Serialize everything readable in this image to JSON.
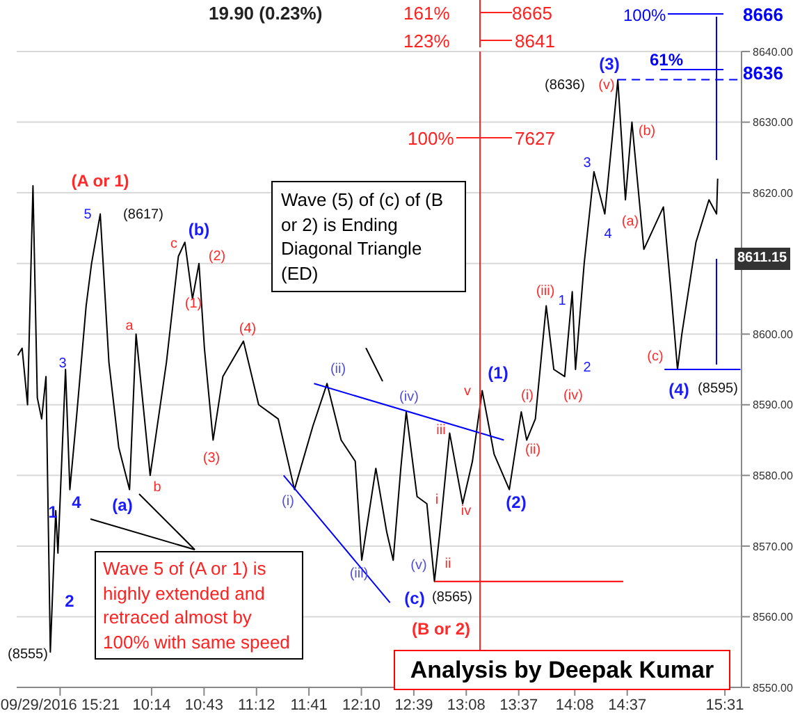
{
  "chart_data": {
    "type": "line",
    "subtitle": "19.90 (0.23%)",
    "xlim": [
      8.99,
      15.67
    ],
    "xticks": [
      {
        "value": 9.39,
        "label": "09/29/2016 15:21"
      },
      {
        "value": 10.2333,
        "label": "10:14"
      },
      {
        "value": 10.7167,
        "label": "10:43"
      },
      {
        "value": 11.2,
        "label": "11:12"
      },
      {
        "value": 11.6833,
        "label": "11:41"
      },
      {
        "value": 12.1667,
        "label": "12:10"
      },
      {
        "value": 12.65,
        "label": "12:39"
      },
      {
        "value": 13.1333,
        "label": "13:08"
      },
      {
        "value": 13.6167,
        "label": "13:37"
      },
      {
        "value": 14.1333,
        "label": "14:08"
      },
      {
        "value": 14.6167,
        "label": "14:37"
      },
      {
        "value": 15.5167,
        "label": "15:31"
      }
    ],
    "ylim": [
      8550,
      8640
    ],
    "yticks": [
      {
        "value": 8550,
        "label": "8550.00"
      },
      {
        "value": 8560,
        "label": "8560.00"
      },
      {
        "value": 8570,
        "label": "8570.00"
      },
      {
        "value": 8580,
        "label": "8580.00"
      },
      {
        "value": 8590,
        "label": "8590.00"
      },
      {
        "value": 8600,
        "label": "8600.00"
      },
      {
        "value": 8610,
        "label": null
      },
      {
        "value": 8620,
        "label": "8620.00"
      },
      {
        "value": 8630,
        "label": "8630.00"
      },
      {
        "value": 8640,
        "label": "8640.00"
      }
    ],
    "grid": "y",
    "marker": "none",
    "ref_lines": [
      {
        "axis": "x",
        "value": 13.26,
        "color": "#ff2020"
      }
    ],
    "series": [
      {
        "color": "#000000",
        "x": [
          9.0,
          9.04,
          9.09,
          9.14,
          9.18,
          9.22,
          9.26,
          9.3,
          9.35,
          9.37,
          9.44,
          9.48,
          9.54,
          9.63,
          9.68,
          9.76,
          9.84,
          9.93,
          10.03,
          10.09,
          10.22,
          10.37,
          10.48,
          10.54,
          10.61,
          10.67,
          10.72,
          10.8,
          10.89,
          11.08,
          11.22,
          11.4,
          11.55,
          11.72,
          11.85,
          11.98,
          12.11,
          12.17,
          12.3,
          12.4,
          12.46,
          12.53,
          12.58,
          12.68,
          12.77,
          12.84,
          12.89,
          12.98,
          13.1,
          13.19,
          13.28,
          13.39,
          13.53,
          13.64,
          13.69,
          13.77,
          13.87,
          13.94,
          14.04,
          14.11,
          14.14,
          14.22,
          14.31,
          14.41,
          14.48,
          14.53,
          14.6,
          14.66,
          14.77,
          14.95,
          15.02,
          15.08,
          15.12,
          15.25,
          15.37,
          15.44,
          15.45
        ],
        "values": [
          8597,
          8598,
          8590,
          8621,
          8591,
          8588,
          8594,
          8555,
          8575,
          8569,
          8595,
          8578,
          8588,
          8604,
          8610,
          8617,
          8596,
          8584,
          8578,
          8600,
          8580,
          8596,
          8611,
          8613,
          8605,
          8610,
          8598,
          8585,
          8594,
          8599,
          8590,
          8588,
          8578,
          8587,
          8593,
          8585,
          8582,
          8568,
          8581,
          8572,
          8568,
          8581,
          8589,
          8577,
          8576,
          8565,
          8572,
          8586,
          8576,
          8582,
          8592,
          8583,
          8578,
          8589,
          8585,
          8588,
          8604,
          8595,
          8594,
          8606,
          8595,
          8610,
          8623,
          8617,
          8628,
          8636,
          8619,
          8630,
          8612,
          8618,
          8606,
          8595,
          8600,
          8613,
          8619,
          8617,
          8622
        ]
      },
      {
        "type": "line",
        "color": "#0000ff",
        "x": [
          11.73,
          13.48
        ],
        "values": [
          8593,
          8585
        ]
      },
      {
        "type": "line",
        "color": "#0000ff",
        "x": [
          11.45,
          12.43
        ],
        "values": [
          8580,
          8562
        ]
      },
      {
        "type": "line",
        "color": "#ff0000",
        "x": [
          12.84,
          14.58
        ],
        "values": [
          8565,
          8565
        ]
      },
      {
        "type": "line",
        "color": "#0000ff",
        "x": [
          14.96,
          15.66
        ],
        "values": [
          8595,
          8595
        ]
      },
      {
        "type": "line",
        "color": "#0000ff",
        "line_style": "dashed",
        "x": [
          14.53,
          15.66
        ],
        "values": [
          8636,
          8636
        ]
      }
    ],
    "annotations": [
      "Wave (5) of (c) of (B or 2) is Ending Diagonal Triangle (ED)",
      "Wave 5 of (A or 1) is highly extended and retraced almost by 100% with same speed",
      "Analysis by Deepak Kumar",
      "161%",
      "8665",
      "123%",
      "8641",
      "100%",
      "7627",
      "100%",
      "8666",
      "61%",
      "8636",
      "8611.15",
      "(A or 1)",
      "5",
      "(8617)",
      "(b)",
      "c",
      "(2)",
      "(1)",
      "a",
      "(4)",
      "3",
      "(3)",
      "4",
      "(a)",
      "b",
      "1",
      "2",
      "(8555)",
      "(i)",
      "(ii)",
      "(iii)",
      "(iv)",
      "(v)",
      "(c)",
      "(8565)",
      "(B or 2)",
      "i",
      "ii",
      "iii",
      "iv",
      "v",
      "(1)",
      "(2)",
      "(i)",
      "(ii)",
      "(iii)",
      "(iv)",
      "1",
      "2",
      "3",
      "4",
      "(a)",
      "(b)",
      "(3)",
      "(8636)",
      "(v)",
      "(c)",
      "(4)",
      "(8595)"
    ]
  }
}
